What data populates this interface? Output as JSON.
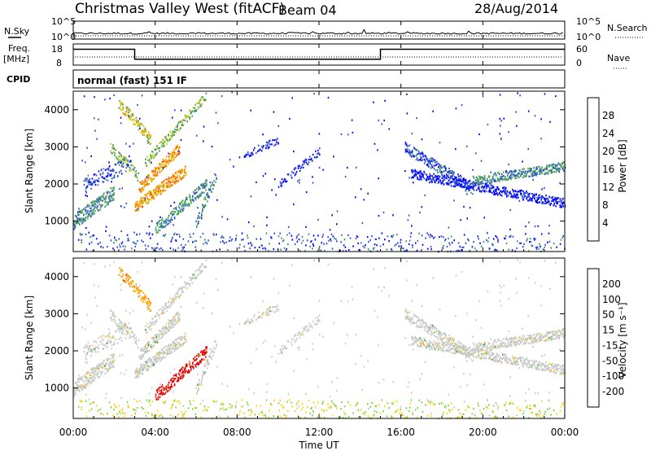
{
  "header": {
    "title": "Christmas Valley West (fitACF)",
    "beam": "Beam 04",
    "date": "28/Aug/2014"
  },
  "panels": {
    "nsky_label": "N.Sky",
    "nsearch_label": "N.Search",
    "freq_label_1": "Freq.",
    "freq_label_2": "[MHz]",
    "nave_label": "Nave",
    "cpid_label": "CPID",
    "cpid_text": "normal (fast) 151 IF"
  },
  "colors": {
    "power": [
      "#0000ff",
      "#2a4fd8",
      "#3c8a7c",
      "#4cab3c",
      "#c8c800",
      "#ffa000",
      "#ff5000",
      "#ff0000"
    ],
    "velocity": [
      "#e00000",
      "#ff5a00",
      "#ffa000",
      "#ffd200",
      "#c8c8c8",
      "#7ad23c",
      "#3c9a3c",
      "#1e5aa0",
      "#1e32c8"
    ],
    "grey_scatter": "#c0c0c0"
  },
  "chart_data": [
    {
      "type": "line",
      "name": "noise",
      "ytick_labels": [
        "10^5",
        "10^0"
      ],
      "ytick_labels_right": [
        "10^5",
        "10^0"
      ],
      "ylim": [
        0,
        5
      ]
    },
    {
      "type": "line",
      "name": "frequency",
      "ytick_labels_left": [
        "18",
        "8"
      ],
      "ytick_labels_right": [
        "60",
        "0"
      ],
      "ylim": [
        8,
        18
      ],
      "series": [
        {
          "x": [
            0,
            3.0,
            3.0,
            15.0,
            15.0,
            24
          ],
          "y": [
            15.5,
            15.5,
            10.8,
            10.8,
            15.5,
            15.5
          ]
        }
      ]
    },
    {
      "type": "heatmap",
      "name": "power",
      "ylabel": "Slant Range [km]",
      "colorbar_label": "Power [dB]",
      "colorbar_ticks": [
        "28",
        "24",
        "20",
        "16",
        "12",
        "8",
        "4"
      ],
      "ylim": [
        180,
        4500
      ],
      "yticks": [
        1000,
        2000,
        3000,
        4000
      ]
    },
    {
      "type": "heatmap",
      "name": "velocity",
      "ylabel": "Slant Range [km]",
      "colorbar_label": "Velocity [m s⁻¹]",
      "colorbar_ticks": [
        "200",
        "100",
        "50",
        "15",
        "-15",
        "-50",
        "-100",
        "-200"
      ],
      "ylim": [
        180,
        4500
      ],
      "yticks": [
        1000,
        2000,
        3000,
        4000
      ]
    }
  ],
  "xaxis": {
    "label": "Time UT",
    "ticks": [
      "00:00",
      "04:00",
      "08:00",
      "12:00",
      "16:00",
      "20:00",
      "00:00"
    ],
    "xlim": [
      0,
      24
    ]
  }
}
